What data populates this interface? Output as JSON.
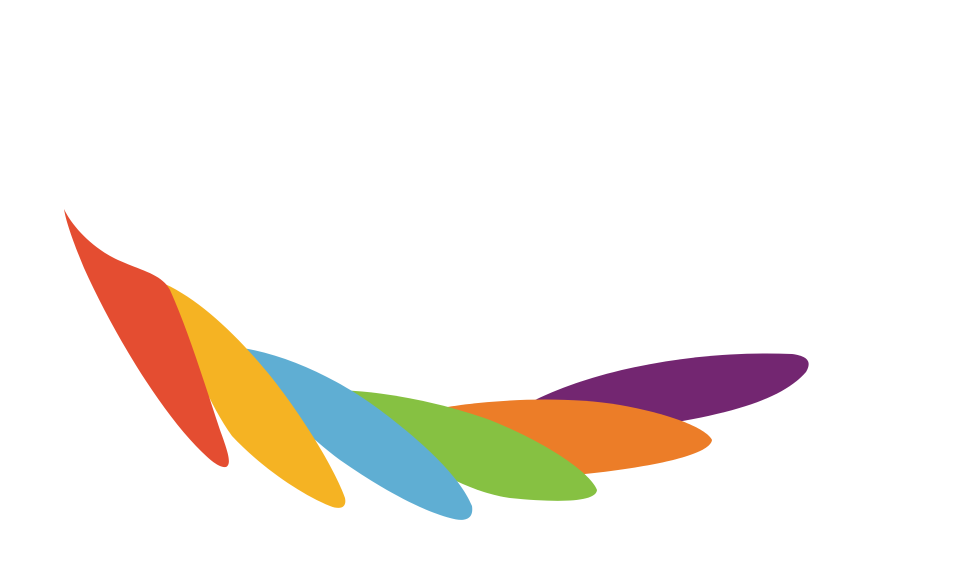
{
  "graphic": {
    "name": "rainbow-feather-logo",
    "colors": {
      "red": "#E44D31",
      "yellow": "#F5B323",
      "blue": "#5FAED3",
      "green": "#86C142",
      "orange": "#EC7D28",
      "purple": "#732671"
    }
  }
}
